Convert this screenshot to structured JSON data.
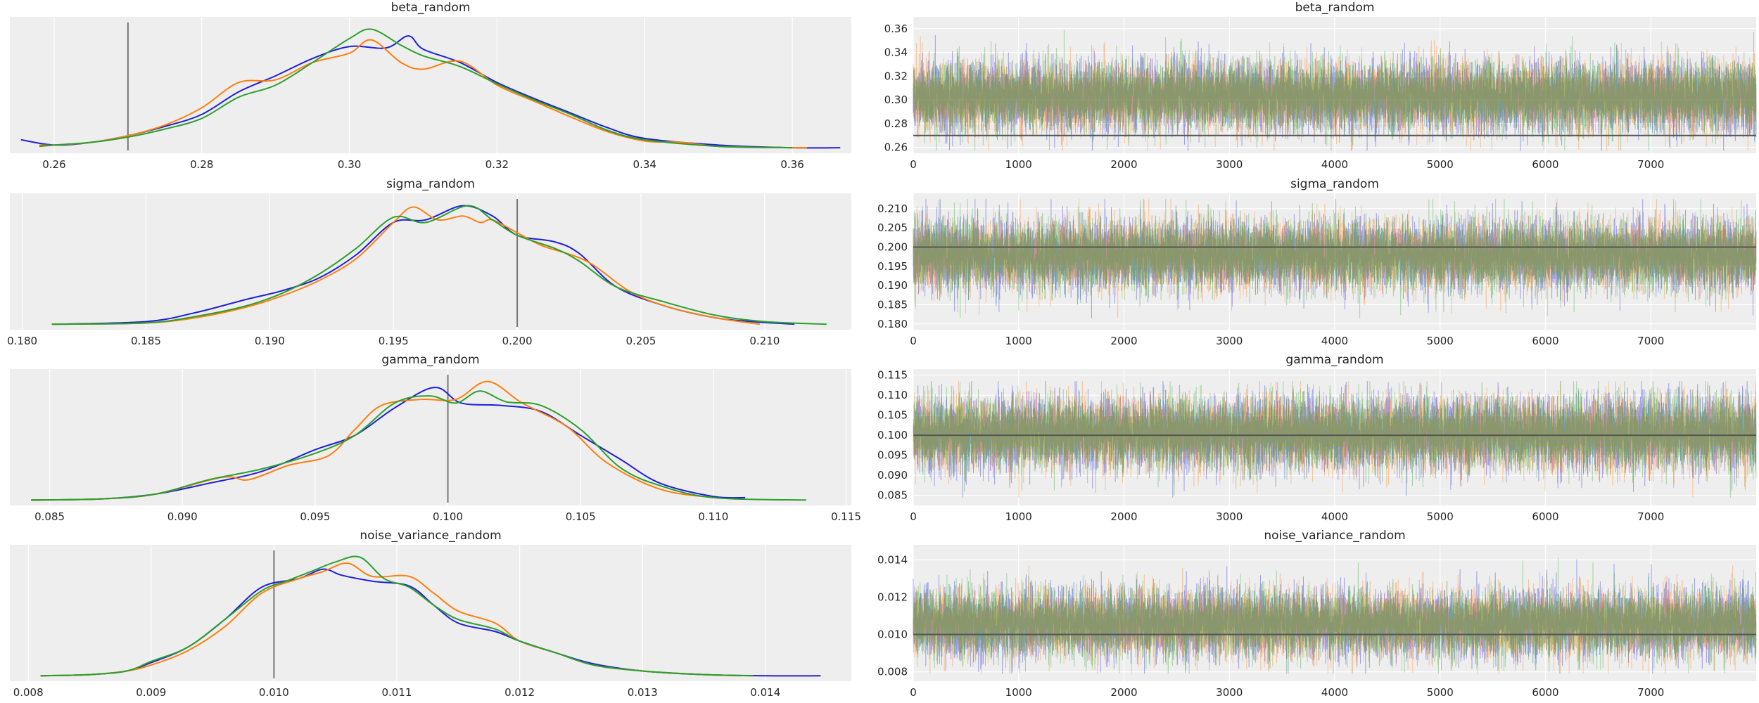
{
  "colors": {
    "background": "#eeeeee",
    "grid": "#ffffff",
    "chain_0": "#1f1fd8",
    "chain_1": "#ff7f0e",
    "chain_2": "#2ca02c",
    "reference": "#555555"
  },
  "chart_data": [
    {
      "type": "line",
      "kind": "density",
      "title": "beta_random",
      "xlim": [
        0.254,
        0.368
      ],
      "xticks": [
        "0.26",
        "0.28",
        "0.30",
        "0.32",
        "0.34",
        "0.36"
      ],
      "xtick_values": [
        0.26,
        0.28,
        0.3,
        0.32,
        0.34,
        0.36
      ],
      "reference": 0.27,
      "series": [
        {
          "color_key": "chain_0",
          "x": [
            0.2555,
            0.26,
            0.265,
            0.27,
            0.275,
            0.28,
            0.285,
            0.29,
            0.295,
            0.3,
            0.305,
            0.308,
            0.31,
            0.315,
            0.32,
            0.325,
            0.33,
            0.335,
            0.34,
            0.35,
            0.36,
            0.3665
          ],
          "y": [
            0.07,
            0.03,
            0.05,
            0.1,
            0.17,
            0.26,
            0.43,
            0.55,
            0.68,
            0.77,
            0.76,
            0.85,
            0.75,
            0.65,
            0.5,
            0.38,
            0.27,
            0.16,
            0.08,
            0.03,
            0.01,
            0.01
          ]
        },
        {
          "color_key": "chain_1",
          "x": [
            0.258,
            0.26,
            0.265,
            0.27,
            0.275,
            0.28,
            0.285,
            0.29,
            0.295,
            0.3,
            0.303,
            0.307,
            0.31,
            0.315,
            0.32,
            0.325,
            0.33,
            0.335,
            0.34,
            0.345,
            0.35,
            0.36,
            0.362
          ],
          "y": [
            0.03,
            0.03,
            0.05,
            0.1,
            0.18,
            0.31,
            0.5,
            0.52,
            0.65,
            0.72,
            0.82,
            0.65,
            0.6,
            0.66,
            0.48,
            0.36,
            0.24,
            0.13,
            0.06,
            0.05,
            0.02,
            0.01,
            0.01
          ]
        },
        {
          "color_key": "chain_2",
          "x": [
            0.258,
            0.26,
            0.265,
            0.27,
            0.275,
            0.28,
            0.285,
            0.29,
            0.295,
            0.3,
            0.303,
            0.307,
            0.31,
            0.315,
            0.32,
            0.325,
            0.33,
            0.335,
            0.34,
            0.35,
            0.36
          ],
          "y": [
            0.02,
            0.03,
            0.05,
            0.09,
            0.15,
            0.23,
            0.39,
            0.48,
            0.65,
            0.83,
            0.9,
            0.78,
            0.7,
            0.62,
            0.49,
            0.37,
            0.26,
            0.14,
            0.07,
            0.02,
            0.01
          ]
        }
      ]
    },
    {
      "type": "line",
      "kind": "trace",
      "title": "beta_random",
      "xlim": [
        0,
        8000
      ],
      "xticks": [
        "0",
        "1000",
        "2000",
        "3000",
        "4000",
        "5000",
        "6000",
        "7000"
      ],
      "xtick_values": [
        0,
        1000,
        2000,
        3000,
        4000,
        5000,
        6000,
        7000
      ],
      "ylim": [
        0.255,
        0.37
      ],
      "yticks": [
        "0.26",
        "0.28",
        "0.30",
        "0.32",
        "0.34",
        "0.36"
      ],
      "ytick_values": [
        0.26,
        0.28,
        0.3,
        0.32,
        0.34,
        0.36
      ],
      "reference": 0.27,
      "draws_per_chain": 8000,
      "mean": 0.303,
      "sd": 0.0145,
      "low": 0.257,
      "high": 0.366
    },
    {
      "type": "line",
      "kind": "density",
      "title": "sigma_random",
      "xlim": [
        0.1795,
        0.2135
      ],
      "xticks": [
        "0.180",
        "0.185",
        "0.190",
        "0.195",
        "0.200",
        "0.205",
        "0.210"
      ],
      "xtick_values": [
        0.18,
        0.185,
        0.19,
        0.195,
        0.2,
        0.205,
        0.21
      ],
      "reference": 0.2,
      "series": [
        {
          "color_key": "chain_0",
          "x": [
            0.1812,
            0.185,
            0.187,
            0.189,
            0.1905,
            0.192,
            0.1935,
            0.195,
            0.1963,
            0.1978,
            0.199,
            0.2,
            0.2015,
            0.2025,
            0.204,
            0.206,
            0.208,
            0.2095,
            0.2112
          ],
          "y": [
            0.01,
            0.03,
            0.1,
            0.2,
            0.27,
            0.37,
            0.55,
            0.8,
            0.82,
            0.93,
            0.85,
            0.7,
            0.65,
            0.56,
            0.3,
            0.15,
            0.06,
            0.03,
            0.01
          ]
        },
        {
          "color_key": "chain_1",
          "x": [
            0.1812,
            0.185,
            0.187,
            0.189,
            0.1905,
            0.192,
            0.1935,
            0.195,
            0.1958,
            0.1968,
            0.1978,
            0.1985,
            0.199,
            0.2,
            0.201,
            0.2028,
            0.2045,
            0.206,
            0.208,
            0.2098
          ],
          "y": [
            0.01,
            0.02,
            0.06,
            0.14,
            0.23,
            0.35,
            0.52,
            0.8,
            0.92,
            0.82,
            0.85,
            0.8,
            0.82,
            0.72,
            0.62,
            0.5,
            0.27,
            0.15,
            0.06,
            0.01
          ]
        },
        {
          "color_key": "chain_2",
          "x": [
            0.1812,
            0.185,
            0.187,
            0.189,
            0.1905,
            0.192,
            0.1935,
            0.195,
            0.1963,
            0.198,
            0.199,
            0.2,
            0.2015,
            0.2025,
            0.204,
            0.206,
            0.208,
            0.21,
            0.2125
          ],
          "y": [
            0.01,
            0.02,
            0.07,
            0.15,
            0.25,
            0.4,
            0.6,
            0.84,
            0.8,
            0.93,
            0.82,
            0.7,
            0.6,
            0.5,
            0.3,
            0.18,
            0.08,
            0.03,
            0.01
          ]
        }
      ]
    },
    {
      "type": "line",
      "kind": "trace",
      "title": "sigma_random",
      "xlim": [
        0,
        8000
      ],
      "xticks": [
        "0",
        "1000",
        "2000",
        "3000",
        "4000",
        "5000",
        "6000",
        "7000"
      ],
      "xtick_values": [
        0,
        1000,
        2000,
        3000,
        4000,
        5000,
        6000,
        7000
      ],
      "ylim": [
        0.1785,
        0.214
      ],
      "yticks": [
        "0.180",
        "0.185",
        "0.190",
        "0.195",
        "0.200",
        "0.205",
        "0.210"
      ],
      "ytick_values": [
        0.18,
        0.185,
        0.19,
        0.195,
        0.2,
        0.205,
        0.21
      ],
      "reference": 0.2,
      "draws_per_chain": 8000,
      "mean": 0.198,
      "sd": 0.0045,
      "low": 0.1815,
      "high": 0.2125
    },
    {
      "type": "line",
      "kind": "density",
      "title": "gamma_random",
      "xlim": [
        0.0835,
        0.1152
      ],
      "xticks": [
        "0.085",
        "0.090",
        "0.095",
        "0.100",
        "0.105",
        "0.110",
        "0.115"
      ],
      "xtick_values": [
        0.085,
        0.09,
        0.095,
        0.1,
        0.105,
        0.11,
        0.115
      ],
      "reference": 0.1,
      "series": [
        {
          "color_key": "chain_0",
          "x": [
            0.0843,
            0.087,
            0.089,
            0.091,
            0.093,
            0.095,
            0.0965,
            0.098,
            0.0995,
            0.1005,
            0.102,
            0.1035,
            0.105,
            0.1065,
            0.108,
            0.11,
            0.1112
          ],
          "y": [
            0.01,
            0.02,
            0.06,
            0.15,
            0.25,
            0.43,
            0.55,
            0.78,
            0.95,
            0.82,
            0.8,
            0.75,
            0.55,
            0.35,
            0.15,
            0.04,
            0.03
          ]
        },
        {
          "color_key": "chain_1",
          "x": [
            0.0843,
            0.087,
            0.089,
            0.0915,
            0.0925,
            0.094,
            0.0955,
            0.0965,
            0.0975,
            0.099,
            0.1003,
            0.1015,
            0.1028,
            0.1045,
            0.106,
            0.108,
            0.11
          ],
          "y": [
            0.01,
            0.02,
            0.06,
            0.2,
            0.18,
            0.3,
            0.38,
            0.6,
            0.8,
            0.85,
            0.85,
            1.0,
            0.82,
            0.62,
            0.32,
            0.1,
            0.03
          ]
        },
        {
          "color_key": "chain_2",
          "x": [
            0.0843,
            0.087,
            0.089,
            0.091,
            0.093,
            0.095,
            0.0965,
            0.098,
            0.0993,
            0.1003,
            0.1012,
            0.1022,
            0.1035,
            0.105,
            0.1065,
            0.108,
            0.11,
            0.1135
          ],
          "y": [
            0.01,
            0.02,
            0.06,
            0.18,
            0.27,
            0.4,
            0.55,
            0.82,
            0.88,
            0.82,
            0.92,
            0.83,
            0.8,
            0.6,
            0.28,
            0.13,
            0.03,
            0.01
          ]
        }
      ]
    },
    {
      "type": "line",
      "kind": "trace",
      "title": "gamma_random",
      "xlim": [
        0,
        8000
      ],
      "xticks": [
        "0",
        "1000",
        "2000",
        "3000",
        "4000",
        "5000",
        "6000",
        "7000"
      ],
      "xtick_values": [
        0,
        1000,
        2000,
        3000,
        4000,
        5000,
        6000,
        7000
      ],
      "ylim": [
        0.0825,
        0.1165
      ],
      "yticks": [
        "0.085",
        "0.090",
        "0.095",
        "0.100",
        "0.105",
        "0.110",
        "0.115"
      ],
      "ytick_values": [
        0.085,
        0.09,
        0.095,
        0.1,
        0.105,
        0.11,
        0.115
      ],
      "reference": 0.1,
      "draws_per_chain": 8000,
      "mean": 0.1005,
      "sd": 0.0045,
      "low": 0.0845,
      "high": 0.1135
    },
    {
      "type": "line",
      "kind": "density",
      "title": "noise_variance_random",
      "xlim": [
        0.00785,
        0.0147
      ],
      "xticks": [
        "0.008",
        "0.009",
        "0.010",
        "0.011",
        "0.012",
        "0.013",
        "0.014"
      ],
      "xtick_values": [
        0.008,
        0.009,
        0.01,
        0.011,
        0.012,
        0.013,
        0.014
      ],
      "reference": 0.01,
      "series": [
        {
          "color_key": "chain_0",
          "x": [
            0.0081,
            0.0085,
            0.0088,
            0.009,
            0.0093,
            0.0096,
            0.0099,
            0.0102,
            0.0104,
            0.01055,
            0.0108,
            0.0111,
            0.0113,
            0.0115,
            0.0118,
            0.012,
            0.0123,
            0.0126,
            0.013,
            0.0135,
            0.014,
            0.01445
          ],
          "y": [
            0.01,
            0.02,
            0.05,
            0.12,
            0.25,
            0.48,
            0.75,
            0.82,
            0.9,
            0.85,
            0.8,
            0.76,
            0.6,
            0.45,
            0.38,
            0.3,
            0.2,
            0.11,
            0.05,
            0.02,
            0.01,
            0.01
          ]
        },
        {
          "color_key": "chain_1",
          "x": [
            0.0081,
            0.0085,
            0.0088,
            0.009,
            0.0093,
            0.0096,
            0.0099,
            0.0102,
            0.0104,
            0.0106,
            0.0108,
            0.0111,
            0.0113,
            0.0115,
            0.0118,
            0.012,
            0.0123,
            0.0126,
            0.013,
            0.0135,
            0.0138
          ],
          "y": [
            0.01,
            0.02,
            0.05,
            0.1,
            0.22,
            0.42,
            0.7,
            0.82,
            0.88,
            0.95,
            0.84,
            0.84,
            0.7,
            0.55,
            0.45,
            0.3,
            0.2,
            0.1,
            0.05,
            0.02,
            0.01
          ]
        },
        {
          "color_key": "chain_2",
          "x": [
            0.0081,
            0.0085,
            0.0088,
            0.009,
            0.0093,
            0.0096,
            0.0099,
            0.0101,
            0.0103,
            0.0105,
            0.0107,
            0.0109,
            0.0111,
            0.0113,
            0.0115,
            0.0118,
            0.012,
            0.0123,
            0.0126,
            0.013,
            0.0135,
            0.0139
          ],
          "y": [
            0.01,
            0.02,
            0.05,
            0.13,
            0.25,
            0.48,
            0.72,
            0.8,
            0.88,
            0.96,
            1.0,
            0.82,
            0.75,
            0.6,
            0.48,
            0.4,
            0.3,
            0.2,
            0.1,
            0.05,
            0.02,
            0.01
          ]
        }
      ]
    },
    {
      "type": "line",
      "kind": "trace",
      "title": "noise_variance_random",
      "xlim": [
        0,
        8000
      ],
      "xticks": [
        "0",
        "1000",
        "2000",
        "3000",
        "4000",
        "5000",
        "6000",
        "7000"
      ],
      "xtick_values": [
        0,
        1000,
        2000,
        3000,
        4000,
        5000,
        6000,
        7000
      ],
      "ylim": [
        0.0075,
        0.0148
      ],
      "yticks": [
        "0.008",
        "0.010",
        "0.012",
        "0.014"
      ],
      "ytick_values": [
        0.008,
        0.01,
        0.012,
        0.014
      ],
      "reference": 0.01,
      "draws_per_chain": 8000,
      "mean": 0.0106,
      "sd": 0.0009,
      "low": 0.0079,
      "high": 0.0141
    }
  ]
}
